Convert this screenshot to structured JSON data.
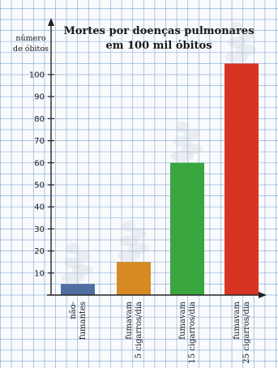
{
  "chart_data": {
    "type": "bar",
    "title": [
      "Mortes por doenças pulmonares",
      "em 100 mil óbitos"
    ],
    "ylabel": [
      "número",
      "de óbitos"
    ],
    "xlabel": "",
    "ylim": [
      0,
      110
    ],
    "yticks": [
      10,
      20,
      30,
      40,
      50,
      60,
      70,
      80,
      90,
      100
    ],
    "grid": true,
    "legend": "none",
    "categories": [
      [
        "não-",
        "fumantes"
      ],
      [
        "fumavam",
        "5 cigarros/dia"
      ],
      [
        "fumavam",
        "15 cigarros/dia"
      ],
      [
        "fumavam",
        "25 cigarros/dia"
      ]
    ],
    "values": [
      5,
      15,
      60,
      105
    ],
    "colors": [
      "#4f6fa3",
      "#d88a22",
      "#3aa640",
      "#d83424"
    ]
  }
}
